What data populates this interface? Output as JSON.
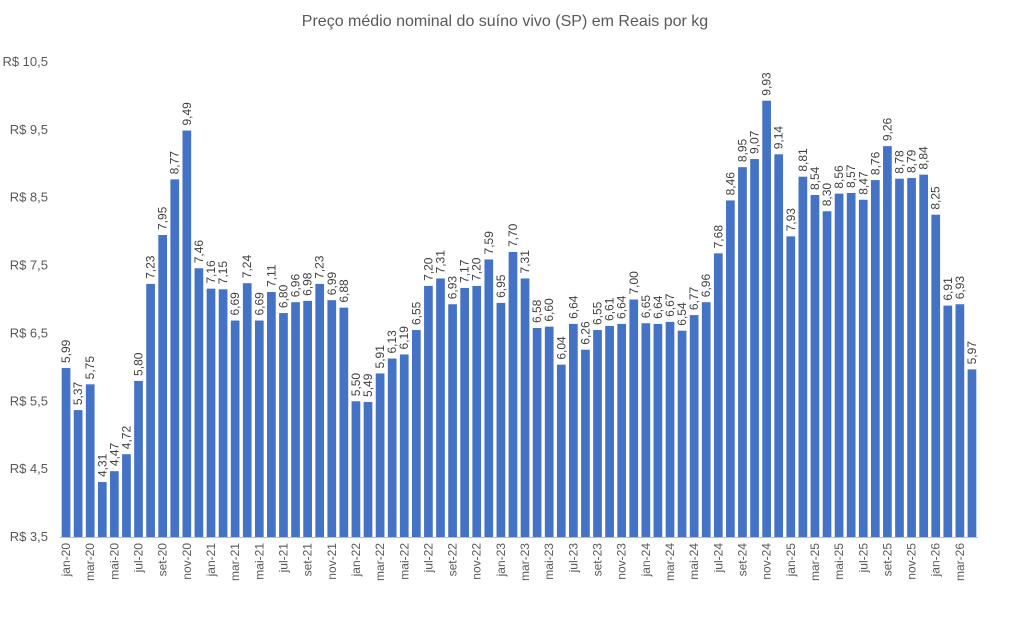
{
  "chart_data": {
    "type": "bar",
    "title": "Preço médio nominal do suíno vivo (SP) em Reais por kg",
    "xlabel": "",
    "ylabel": "",
    "ylim": [
      3.5,
      10.5
    ],
    "grid": false,
    "bar_color": "#4472C4",
    "y_ticks": [
      "R$ 3,5",
      "R$ 4,5",
      "R$ 5,5",
      "R$ 6,5",
      "R$ 7,5",
      "R$ 8,5",
      "R$ 9,5",
      "R$ 10,5"
    ],
    "y_tick_values": [
      3.5,
      4.5,
      5.5,
      6.5,
      7.5,
      8.5,
      9.5,
      10.5
    ],
    "categories": [
      "jan-20",
      "fev-20",
      "mar-20",
      "abr-20",
      "mai-20",
      "jun-20",
      "jul-20",
      "ago-20",
      "set-20",
      "out-20",
      "nov-20",
      "dez-20",
      "jan-21",
      "fev-21",
      "mar-21",
      "abr-21",
      "mai-21",
      "jun-21",
      "jul-21",
      "ago-21",
      "set-21",
      "out-21",
      "nov-21",
      "dez-21",
      "jan-22",
      "fev-22",
      "mar-22",
      "abr-22",
      "mai-22",
      "jun-22",
      "jul-22",
      "ago-22",
      "set-22",
      "out-22",
      "nov-22",
      "dez-22",
      "jan-23",
      "fev-23",
      "mar-23",
      "abr-23",
      "mai-23",
      "jun-23",
      "jul-23",
      "ago-23",
      "set-23",
      "out-23",
      "nov-23",
      "dez-23",
      "jan-24",
      "fev-24",
      "mar-24",
      "abr-24",
      "mai-24",
      "jun-24",
      "jul-24",
      "ago-24",
      "set-24",
      "out-24",
      "nov-24",
      "dez-24",
      "jan-25",
      "fev-25",
      "mar-25",
      "abr-25",
      "mai-25",
      "jun-25",
      "jul-25",
      "ago-25",
      "set-25",
      "out-25",
      "nov-25",
      "dez-25",
      "jan-26",
      "fev-26",
      "mar-26",
      "abr-26"
    ],
    "visible_tick_labels": [
      "jan-20",
      "mar-20",
      "mai-20",
      "jul-20",
      "set-20",
      "nov-20",
      "jan-21",
      "mar-21",
      "mai-21",
      "jul-21",
      "set-21",
      "nov-21",
      "jan-22",
      "mar-22",
      "mai-22",
      "jul-22",
      "set-22",
      "nov-22",
      "jan-23",
      "mar-23",
      "mai-23",
      "jul-23",
      "set-23",
      "nov-23",
      "jan-24",
      "mar-24",
      "mai-24",
      "jul-24",
      "set-24",
      "nov-24",
      "jan-25",
      "mar-25",
      "mai-25",
      "jul-25",
      "set-25",
      "nov-25",
      "jan-26",
      "mar-26"
    ],
    "values": [
      5.99,
      5.37,
      5.75,
      4.31,
      4.47,
      4.72,
      5.8,
      7.23,
      7.95,
      8.77,
      9.49,
      7.46,
      7.16,
      7.15,
      6.69,
      7.24,
      6.69,
      7.11,
      6.8,
      6.96,
      6.98,
      7.23,
      6.99,
      6.88,
      5.5,
      5.49,
      5.91,
      6.13,
      6.19,
      6.55,
      7.2,
      7.31,
      6.93,
      7.17,
      7.2,
      7.59,
      6.95,
      7.7,
      7.31,
      6.58,
      6.6,
      6.04,
      6.64,
      6.26,
      6.55,
      6.61,
      6.64,
      7.0,
      6.65,
      6.64,
      6.67,
      6.54,
      6.77,
      6.96,
      7.68,
      8.46,
      8.95,
      9.07,
      9.93,
      9.14,
      7.93,
      8.81,
      8.54,
      8.3,
      8.56,
      8.57,
      8.47,
      8.76,
      9.26,
      8.78,
      8.79,
      8.84,
      8.25,
      6.91,
      6.93,
      5.97
    ],
    "data_labels": [
      "5,99",
      "5,37",
      "5,75",
      "4,31",
      "4,47",
      "4,72",
      "5,80",
      "7,23",
      "7,95",
      "8,77",
      "9,49",
      "7,46",
      "7,16",
      "7,15",
      "6,69",
      "7,24",
      "6,69",
      "7,11",
      "6,80",
      "6,96",
      "6,98",
      "7,23",
      "6,99",
      "6,88",
      "5,50",
      "5,49",
      "5,91",
      "6,13",
      "6,19",
      "6,55",
      "7,20",
      "7,31",
      "6,93",
      "7,17",
      "7,20",
      "7,59",
      "6,95",
      "7,70",
      "7,31",
      "6,58",
      "6,60",
      "6,04",
      "6,64",
      "6,26",
      "6,55",
      "6,61",
      "6,64",
      "7,00",
      "6,65",
      "6,64",
      "6,67",
      "6,54",
      "6,77",
      "6,96",
      "7,68",
      "8,46",
      "8,95",
      "9,07",
      "9,93",
      "9,14",
      "7,93",
      "8,81",
      "8,54",
      "8,30",
      "8,56",
      "8,57",
      "8,47",
      "8,76",
      "9,26",
      "8,78",
      "8,79",
      "8,84",
      "8,25",
      "6,91",
      "6,93",
      "5,97"
    ]
  }
}
